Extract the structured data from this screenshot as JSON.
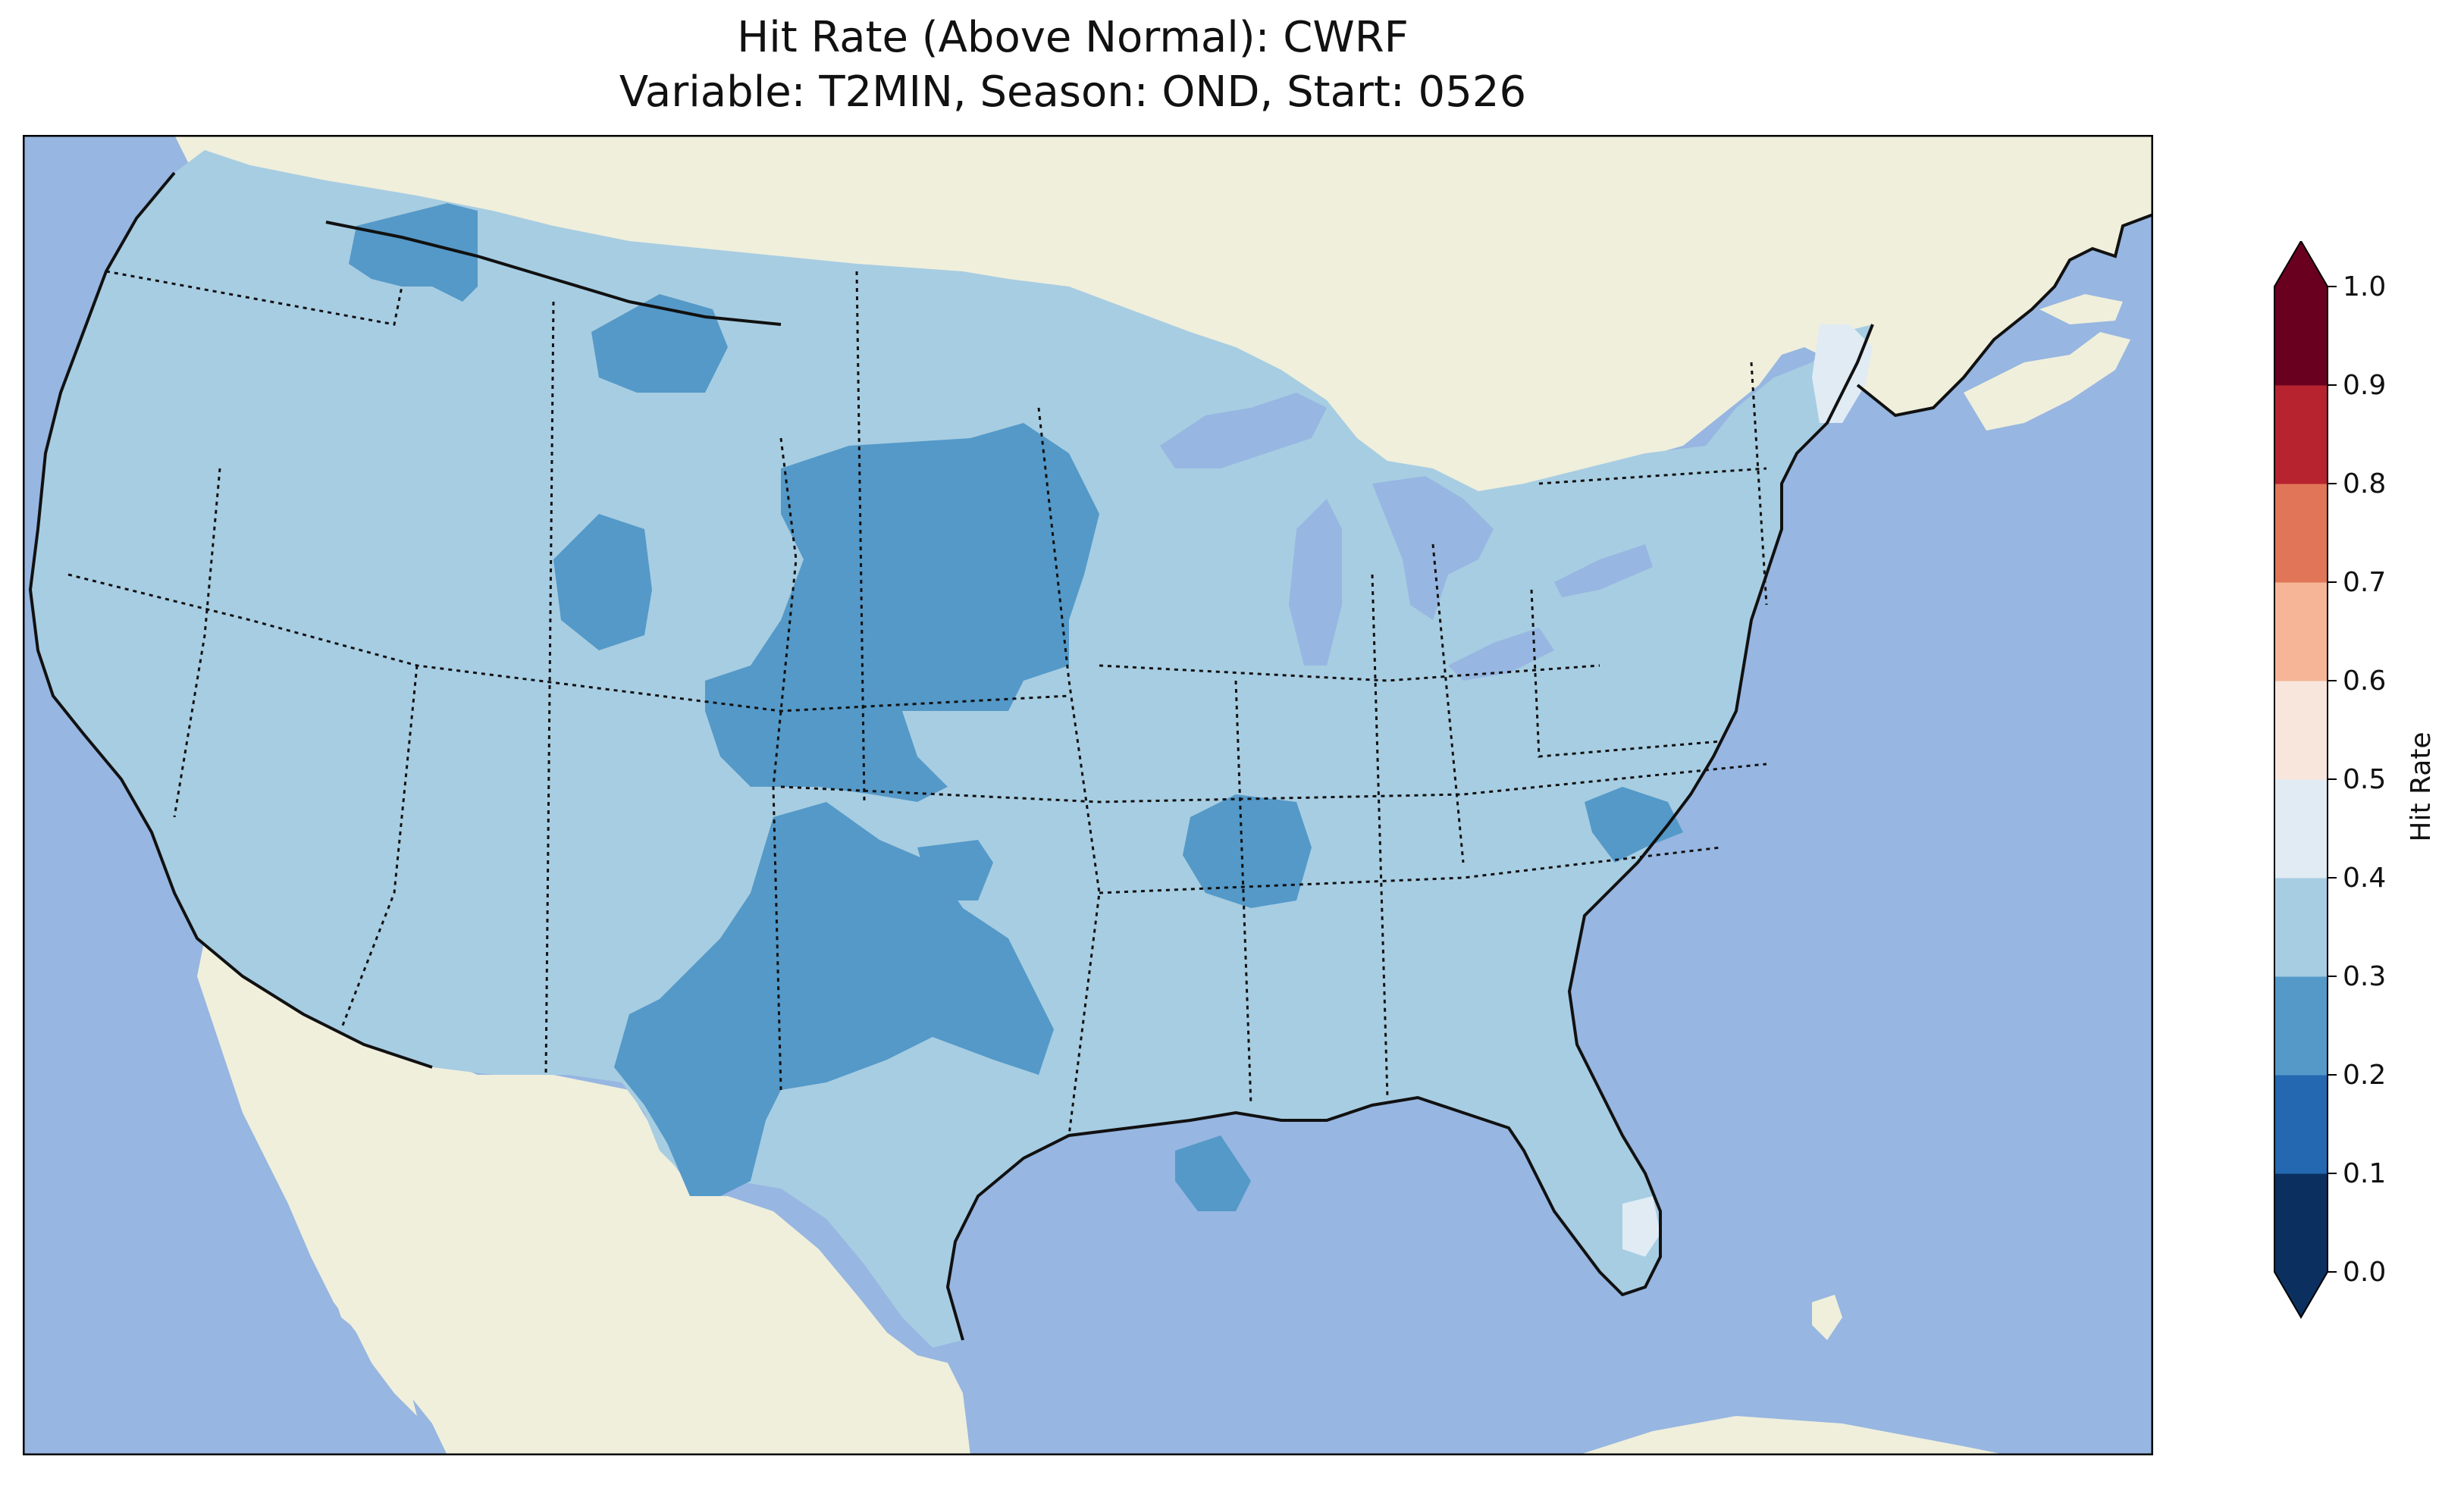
{
  "title": {
    "line1": "Hit Rate (Above Normal): CWRF",
    "line2": "Variable: T2MIN, Season: OND, Start: 0526"
  },
  "colorbar": {
    "label": "Hit Rate",
    "ticks": [
      "0.0",
      "0.1",
      "0.2",
      "0.3",
      "0.4",
      "0.5",
      "0.6",
      "0.7",
      "0.8",
      "0.9",
      "1.0"
    ],
    "colors": [
      "#0b3060",
      "#2368b0",
      "#5499c8",
      "#a7cde2",
      "#e0ebf4",
      "#f8e6dc",
      "#f5b596",
      "#e07657",
      "#b7232f",
      "#690020"
    ],
    "extend": "both"
  },
  "map": {
    "ocean_color": "#97b6e1",
    "land_color": "#efefdc",
    "domain_fill_color": "#a7cde2",
    "dark_region_color": "#5499c8",
    "light_region_color": "#e0ebf4"
  }
}
